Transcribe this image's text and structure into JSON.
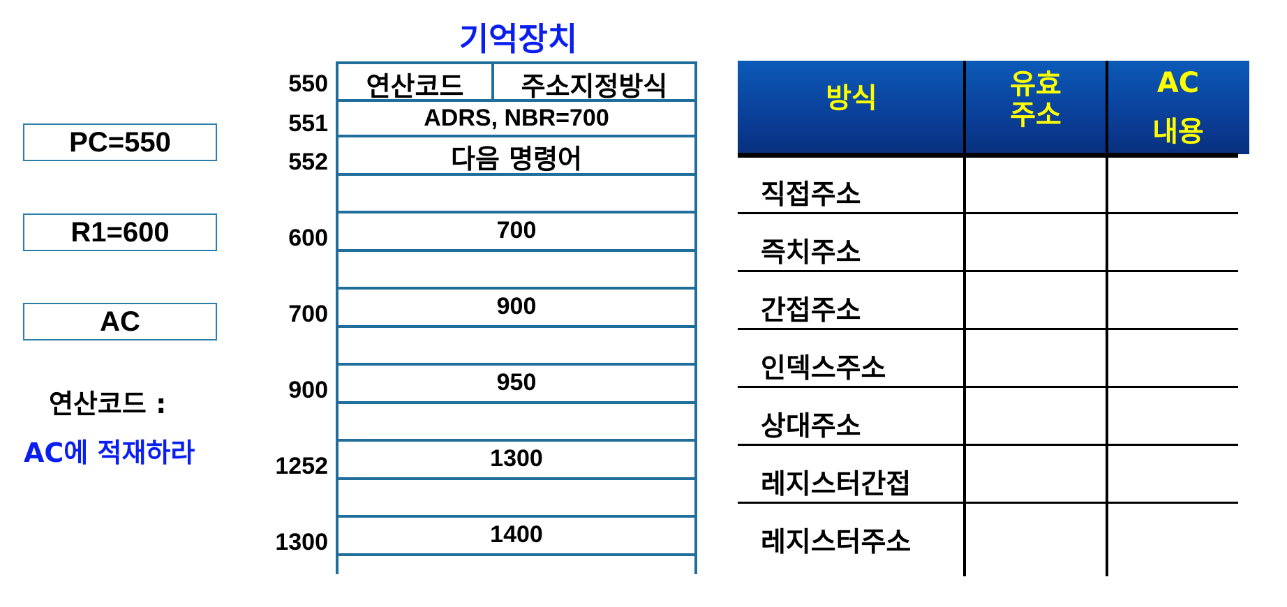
{
  "registers": {
    "pc": "PC=550",
    "r1": "R1=600",
    "ac": "AC"
  },
  "note": {
    "line1": "연산코드 :",
    "line2": "AC에 적재하라"
  },
  "memory": {
    "title": "기억장치",
    "addresses": [
      "550",
      "551",
      "552",
      "600",
      "700",
      "900",
      "1252",
      "1300"
    ],
    "cells": {
      "opcode": "연산코드",
      "mode": "주소지정방식",
      "operand": "ADRS, NBR=700",
      "next": "다음 명령어",
      "v600": "700",
      "v700": "900",
      "v900": "950",
      "v1252": "1300",
      "v1300": "1400"
    }
  },
  "table": {
    "headers": {
      "method": "방식",
      "ea_line1": "유효",
      "ea_line2": "주소",
      "ac_line1": "AC",
      "ac_line2": "내용"
    },
    "rows": [
      "직접주소",
      "즉치주소",
      "간접주소",
      "인덱스주소",
      "상대주소",
      "레지스터간접",
      "레지스터주소"
    ]
  },
  "colors": {
    "blue_text": "#0a1ef0",
    "memory_border": "#1f6e9c",
    "header_bg": "#0a3f98",
    "header_text": "#ffff00"
  }
}
